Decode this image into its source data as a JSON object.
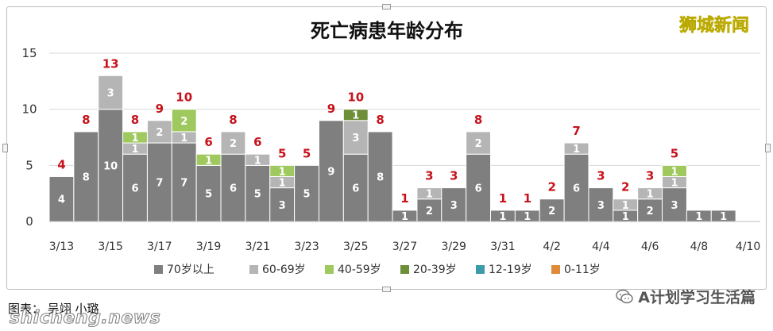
{
  "page": {
    "watermark": "狮城新闻",
    "footer_left": "图表： 吴翊 小璐",
    "footer_site": "shicheng.news",
    "footer_account": "A计划学习生活篇",
    "footer_icon": "wechat-icon"
  },
  "colors": {
    "70+": "#7f7f7f",
    "60-69": "#b5b5b5",
    "40-59": "#9fc95e",
    "20-39": "#6e8f3a",
    "12-19": "#3c9ba9",
    "0-11": "#e08a3b",
    "total_label": "#c8121b",
    "gridline": "#d9d9d9"
  },
  "chart_data": {
    "type": "bar",
    "stacked": true,
    "title": "死亡病患年龄分布",
    "xlabel": "",
    "ylabel": "",
    "ylim": [
      0,
      15
    ],
    "yticks": [
      "0",
      "5",
      "10",
      "15"
    ],
    "grid": true,
    "legend_position": "bottom",
    "categories": [
      "3/13",
      "3/14",
      "3/15",
      "3/16",
      "3/17",
      "3/18",
      "3/19",
      "3/20",
      "3/21",
      "3/22",
      "3/23",
      "3/24",
      "3/25",
      "3/26",
      "3/27",
      "3/28",
      "3/29",
      "3/30",
      "3/31",
      "4/1",
      "4/2",
      "4/3",
      "4/4",
      "4/5",
      "4/6",
      "4/7",
      "4/8",
      "4/9",
      "4/10"
    ],
    "x_tick_labels": [
      "3/13",
      "",
      "3/15",
      "",
      "3/17",
      "",
      "3/19",
      "",
      "3/21",
      "",
      "3/23",
      "",
      "3/25",
      "",
      "3/27",
      "",
      "3/29",
      "",
      "3/31",
      "",
      "4/2",
      "",
      "4/4",
      "",
      "4/6",
      "",
      "4/8",
      "",
      "4/10"
    ],
    "series": [
      {
        "name": "70岁以上",
        "color_key": "70+",
        "values": [
          4,
          8,
          10,
          6,
          7,
          7,
          5,
          6,
          5,
          3,
          5,
          9,
          6,
          8,
          1,
          2,
          3,
          6,
          1,
          1,
          2,
          6,
          3,
          1,
          2,
          3,
          1,
          1,
          0
        ]
      },
      {
        "name": "60-69岁",
        "color_key": "60-69",
        "values": [
          0,
          0,
          3,
          1,
          2,
          1,
          0,
          2,
          1,
          1,
          0,
          0,
          3,
          0,
          0,
          1,
          0,
          2,
          0,
          0,
          0,
          1,
          0,
          1,
          1,
          1,
          0,
          0,
          0
        ]
      },
      {
        "name": "40-59岁",
        "color_key": "40-59",
        "values": [
          0,
          0,
          0,
          1,
          0,
          2,
          1,
          0,
          0,
          1,
          0,
          0,
          0,
          0,
          0,
          0,
          0,
          0,
          0,
          0,
          0,
          0,
          0,
          0,
          0,
          1,
          0,
          0,
          0
        ]
      },
      {
        "name": "20-39岁",
        "color_key": "20-39",
        "values": [
          0,
          0,
          0,
          0,
          0,
          0,
          0,
          0,
          0,
          0,
          0,
          0,
          1,
          0,
          0,
          0,
          0,
          0,
          0,
          0,
          0,
          0,
          0,
          0,
          0,
          0,
          0,
          0,
          0
        ]
      },
      {
        "name": "12-19岁",
        "color_key": "12-19",
        "values": [
          0,
          0,
          0,
          0,
          0,
          0,
          0,
          0,
          0,
          0,
          0,
          0,
          0,
          0,
          0,
          0,
          0,
          0,
          0,
          0,
          0,
          0,
          0,
          0,
          0,
          0,
          0,
          0,
          0
        ]
      },
      {
        "name": "0-11岁",
        "color_key": "0-11",
        "values": [
          0,
          0,
          0,
          0,
          0,
          0,
          0,
          0,
          0,
          0,
          0,
          0,
          0,
          0,
          0,
          0,
          0,
          0,
          0,
          0,
          0,
          0,
          0,
          0,
          0,
          0,
          0,
          0,
          0
        ]
      }
    ],
    "totals": [
      "4",
      "8",
      "13",
      "8",
      "9",
      "10",
      "6",
      "8",
      "6",
      "5",
      "5",
      "9",
      "10",
      "8",
      "1",
      "3",
      "3",
      "8",
      "1",
      "1",
      "2",
      "7",
      "3",
      "2",
      "3",
      "5",
      "",
      "",
      ""
    ]
  }
}
